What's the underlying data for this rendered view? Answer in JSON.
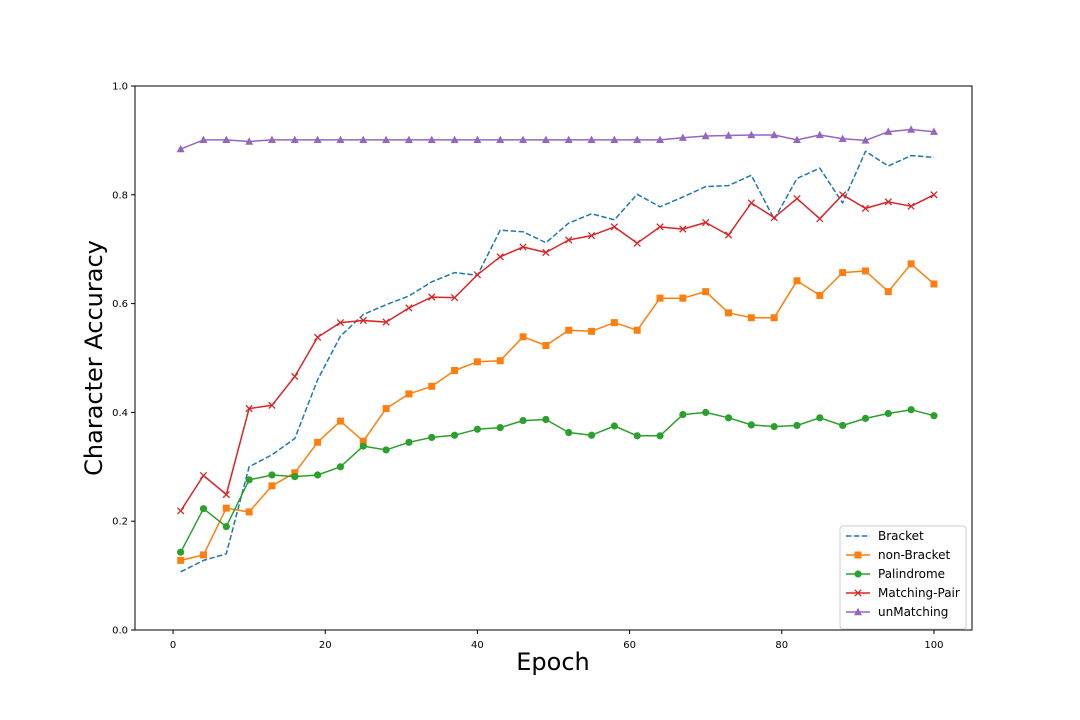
{
  "chart_data": {
    "type": "line",
    "title": "",
    "xlabel": "Epoch",
    "ylabel": "Character Accuracy",
    "xlim": [
      -5,
      105
    ],
    "ylim": [
      0.0,
      1.0
    ],
    "xticks": [
      0,
      20,
      40,
      60,
      80,
      100
    ],
    "yticks": [
      0.0,
      0.2,
      0.4,
      0.6,
      0.8,
      1.0
    ],
    "ytick_labels": [
      "0.0",
      "0.2",
      "0.4",
      "0.6",
      "0.8",
      "1.0"
    ],
    "grid": false,
    "legend_position": "bottom-right",
    "x": [
      1,
      4,
      7,
      10,
      13,
      16,
      19,
      22,
      25,
      28,
      31,
      34,
      37,
      40,
      43,
      46,
      49,
      52,
      55,
      58,
      61,
      64,
      67,
      70,
      73,
      76,
      79,
      82,
      85,
      88,
      91,
      94,
      97,
      100
    ],
    "series": [
      {
        "name": "Bracket",
        "color": "#1f77b4",
        "linestyle": "dashed",
        "marker": "none",
        "values": [
          0.107,
          0.128,
          0.14,
          0.3,
          0.322,
          0.352,
          0.46,
          0.54,
          0.58,
          0.598,
          0.614,
          0.64,
          0.657,
          0.652,
          0.735,
          0.732,
          0.712,
          0.748,
          0.765,
          0.754,
          0.801,
          0.778,
          0.796,
          0.815,
          0.817,
          0.836,
          0.755,
          0.83,
          0.849,
          0.785,
          0.88,
          0.853,
          0.872,
          0.869
        ]
      },
      {
        "name": "non-Bracket",
        "color": "#ff7f0e",
        "linestyle": "solid",
        "marker": "square",
        "values": [
          0.128,
          0.138,
          0.224,
          0.217,
          0.265,
          0.289,
          0.345,
          0.384,
          0.347,
          0.407,
          0.434,
          0.448,
          0.477,
          0.493,
          0.495,
          0.539,
          0.523,
          0.551,
          0.549,
          0.565,
          0.551,
          0.61,
          0.61,
          0.622,
          0.583,
          0.574,
          0.574,
          0.642,
          0.615,
          0.657,
          0.66,
          0.622,
          0.673,
          0.636
        ]
      },
      {
        "name": "Palindrome",
        "color": "#2ca02c",
        "linestyle": "solid",
        "marker": "circle",
        "values": [
          0.143,
          0.223,
          0.19,
          0.276,
          0.285,
          0.282,
          0.285,
          0.3,
          0.338,
          0.331,
          0.345,
          0.354,
          0.358,
          0.369,
          0.372,
          0.385,
          0.387,
          0.363,
          0.358,
          0.375,
          0.357,
          0.357,
          0.396,
          0.4,
          0.39,
          0.377,
          0.374,
          0.376,
          0.39,
          0.376,
          0.389,
          0.398,
          0.405,
          0.394
        ]
      },
      {
        "name": "Matching-Pair",
        "color": "#d62728",
        "linestyle": "solid",
        "marker": "x",
        "values": [
          0.219,
          0.284,
          0.249,
          0.407,
          0.413,
          0.466,
          0.538,
          0.565,
          0.569,
          0.566,
          0.592,
          0.612,
          0.611,
          0.653,
          0.686,
          0.704,
          0.694,
          0.717,
          0.725,
          0.741,
          0.711,
          0.741,
          0.737,
          0.749,
          0.726,
          0.785,
          0.758,
          0.793,
          0.756,
          0.8,
          0.775,
          0.787,
          0.779,
          0.8
        ]
      },
      {
        "name": "unMatching",
        "color": "#9467bd",
        "linestyle": "solid",
        "marker": "triangle",
        "values": [
          0.884,
          0.901,
          0.901,
          0.898,
          0.901,
          0.901,
          0.901,
          0.901,
          0.901,
          0.901,
          0.901,
          0.901,
          0.901,
          0.901,
          0.901,
          0.901,
          0.901,
          0.901,
          0.901,
          0.901,
          0.901,
          0.901,
          0.905,
          0.908,
          0.909,
          0.91,
          0.91,
          0.901,
          0.91,
          0.903,
          0.9,
          0.916,
          0.92,
          0.916
        ]
      }
    ]
  }
}
